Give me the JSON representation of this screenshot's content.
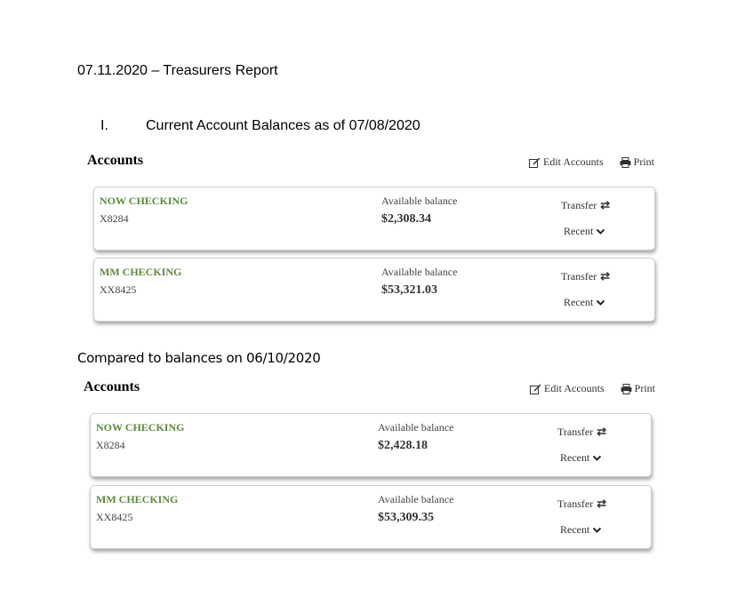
{
  "document": {
    "title": "07.11.2020 – Treasurers Report",
    "section_number": "I.",
    "section_title": "Current Account Balances as of 07/08/2020",
    "compare_text": "Compared to balances on 06/10/2020"
  },
  "panels": [
    {
      "title": "Accounts",
      "edit_label": "Edit Accounts",
      "print_label": "Print",
      "accounts": [
        {
          "name": "NOW CHECKING",
          "number": "X8284",
          "balance_label": "Available balance",
          "balance": "$2,308.34",
          "transfer_label": "Transfer",
          "recent_label": "Recent"
        },
        {
          "name": "MM CHECKING",
          "number": "XX8425",
          "balance_label": "Available balance",
          "balance": "$53,321.03",
          "transfer_label": "Transfer",
          "recent_label": "Recent"
        }
      ]
    },
    {
      "title": "Accounts",
      "edit_label": "Edit Accounts",
      "print_label": "Print",
      "accounts": [
        {
          "name": "NOW CHECKING",
          "number": "X8284",
          "balance_label": "Available balance",
          "balance": "$2,428.18",
          "transfer_label": "Transfer",
          "recent_label": "Recent"
        },
        {
          "name": "MM CHECKING",
          "number": "XX8425",
          "balance_label": "Available balance",
          "balance": "$53,309.35",
          "transfer_label": "Transfer",
          "recent_label": "Recent"
        }
      ]
    }
  ],
  "colors": {
    "account_name": "#5b8a3c",
    "card_border": "#cfcfcf"
  },
  "icons": [
    "edit-icon",
    "print-icon",
    "transfer-arrows-icon",
    "chevron-down-icon"
  ]
}
